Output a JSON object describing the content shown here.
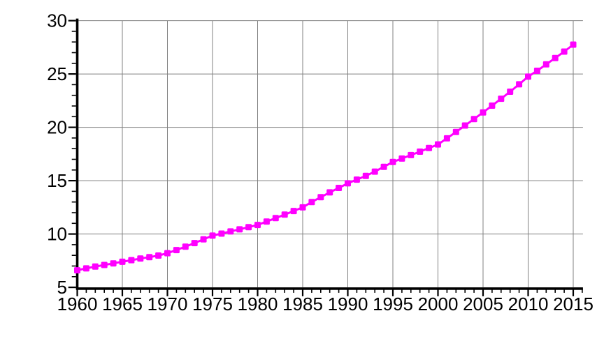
{
  "chart_data": {
    "type": "line",
    "title": "",
    "xlabel": "",
    "ylabel": "",
    "x": [
      1960,
      1961,
      1962,
      1963,
      1964,
      1965,
      1966,
      1967,
      1968,
      1969,
      1970,
      1971,
      1972,
      1973,
      1974,
      1975,
      1976,
      1977,
      1978,
      1979,
      1980,
      1981,
      1982,
      1983,
      1984,
      1985,
      1986,
      1987,
      1988,
      1989,
      1990,
      1991,
      1992,
      1993,
      1994,
      1995,
      1996,
      1997,
      1998,
      1999,
      2000,
      2001,
      2002,
      2003,
      2004,
      2005,
      2006,
      2007,
      2008,
      2009,
      2010,
      2011,
      2012,
      2013,
      2014,
      2015
    ],
    "series": [
      {
        "name": "",
        "color": "#ff00ff",
        "marker": "square",
        "values": [
          6.6,
          6.78,
          6.95,
          7.1,
          7.25,
          7.4,
          7.55,
          7.7,
          7.83,
          7.98,
          8.2,
          8.5,
          8.82,
          9.15,
          9.5,
          9.85,
          10.04,
          10.24,
          10.44,
          10.64,
          10.85,
          11.17,
          11.49,
          11.82,
          12.16,
          12.5,
          13.0,
          13.45,
          13.9,
          14.32,
          14.75,
          15.1,
          15.45,
          15.85,
          16.3,
          16.75,
          17.07,
          17.4,
          17.72,
          18.06,
          18.4,
          18.97,
          19.56,
          20.17,
          20.78,
          21.4,
          22.03,
          22.68,
          23.34,
          24.03,
          24.75,
          25.3,
          25.9,
          26.5,
          27.1,
          27.75
        ]
      }
    ],
    "xlim": [
      1960,
      2016
    ],
    "ylim": [
      5,
      30
    ],
    "x_major_ticks": [
      1960,
      1965,
      1970,
      1975,
      1980,
      1985,
      1990,
      1995,
      2000,
      2005,
      2010,
      2015
    ],
    "y_major_ticks": [
      5,
      10,
      15,
      20,
      25,
      30
    ],
    "x_minor_step": 1,
    "y_minor_step": 1,
    "grid": true,
    "grid_color": "#808080",
    "axis_color": "#000000",
    "background": "#ffffff",
    "legend": "none"
  }
}
